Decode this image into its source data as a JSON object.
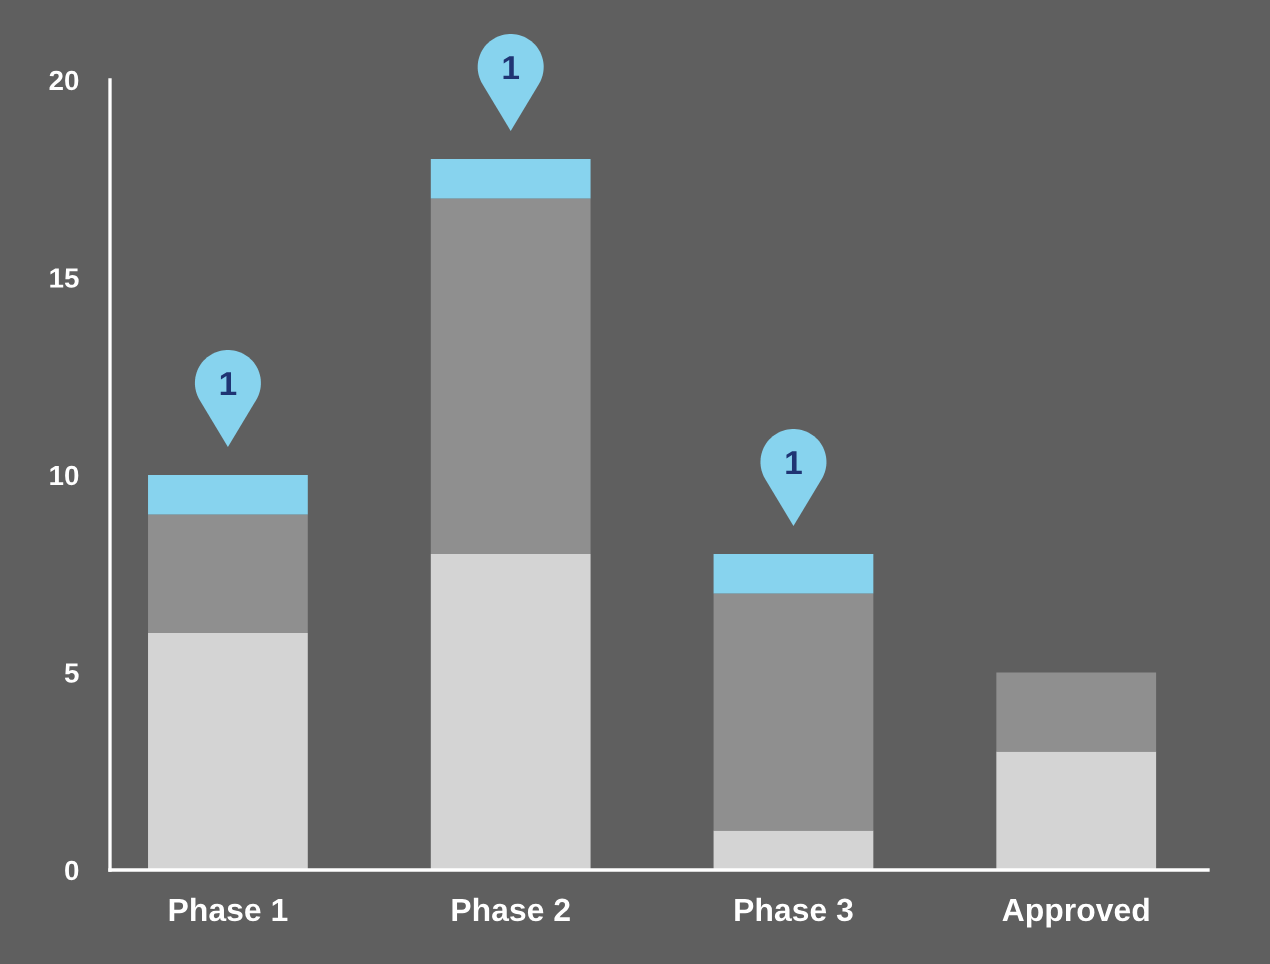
{
  "chart_data": {
    "type": "bar",
    "stacked": true,
    "categories": [
      "Phase 1",
      "Phase 2",
      "Phase 3",
      "Approved"
    ],
    "series": [
      {
        "color": "#d4d4d4",
        "values": [
          6,
          8,
          1,
          3
        ]
      },
      {
        "color": "#8f8f8f",
        "values": [
          3,
          9,
          6,
          2
        ]
      },
      {
        "color": "#87d3ee",
        "values": [
          1,
          1,
          1,
          null
        ],
        "value_labels": [
          "1",
          "1",
          "1",
          null
        ]
      }
    ],
    "ylim": [
      0,
      20
    ],
    "yticks": [
      0,
      5,
      10,
      15,
      20
    ]
  }
}
